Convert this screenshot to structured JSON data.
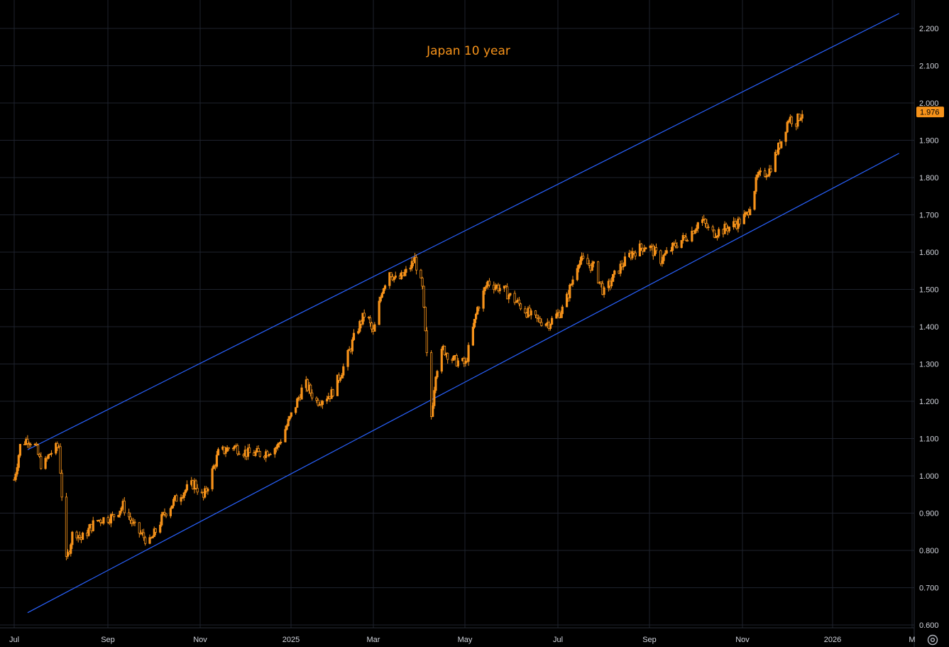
{
  "chart_data": {
    "type": "candlestick",
    "title": "Japan 10 year",
    "x_axis": {
      "labels": [
        "Jul",
        "Sep",
        "Nov",
        "2025",
        "Mar",
        "May",
        "Jul",
        "Sep",
        "Nov",
        "2026",
        "M"
      ]
    },
    "y_axis": {
      "ticks": [
        "2.200",
        "2.100",
        "2.000",
        "1.900",
        "1.800",
        "1.700",
        "1.600",
        "1.500",
        "1.400",
        "1.300",
        "1.200",
        "1.100",
        "1.000",
        "0.900",
        "0.800",
        "0.700",
        "0.600"
      ],
      "ylim": [
        0.6,
        2.2
      ]
    },
    "last_price": "1.976",
    "series": [
      {
        "type": "price",
        "points": [
          {
            "x": "2024-07-01",
            "y": 0.99
          },
          {
            "x": "2024-07-05",
            "y": 1.08
          },
          {
            "x": "2024-07-10",
            "y": 1.1
          },
          {
            "x": "2024-07-15",
            "y": 1.08
          },
          {
            "x": "2024-07-20",
            "y": 1.02
          },
          {
            "x": "2024-07-25",
            "y": 1.06
          },
          {
            "x": "2024-07-31",
            "y": 1.08
          },
          {
            "x": "2024-08-02",
            "y": 0.95
          },
          {
            "x": "2024-08-05",
            "y": 0.77
          },
          {
            "x": "2024-08-10",
            "y": 0.86
          },
          {
            "x": "2024-08-15",
            "y": 0.83
          },
          {
            "x": "2024-08-25",
            "y": 0.88
          },
          {
            "x": "2024-09-05",
            "y": 0.89
          },
          {
            "x": "2024-09-12",
            "y": 0.92
          },
          {
            "x": "2024-09-20",
            "y": 0.86
          },
          {
            "x": "2024-09-30",
            "y": 0.82
          },
          {
            "x": "2024-10-10",
            "y": 0.9
          },
          {
            "x": "2024-10-20",
            "y": 0.95
          },
          {
            "x": "2024-10-30",
            "y": 0.98
          },
          {
            "x": "2024-11-05",
            "y": 0.94
          },
          {
            "x": "2024-11-15",
            "y": 1.06
          },
          {
            "x": "2024-11-25",
            "y": 1.08
          },
          {
            "x": "2024-12-05",
            "y": 1.06
          },
          {
            "x": "2024-12-15",
            "y": 1.06
          },
          {
            "x": "2024-12-25",
            "y": 1.08
          },
          {
            "x": "2025-01-05",
            "y": 1.18
          },
          {
            "x": "2025-01-12",
            "y": 1.25
          },
          {
            "x": "2025-01-20",
            "y": 1.2
          },
          {
            "x": "2025-01-30",
            "y": 1.22
          },
          {
            "x": "2025-02-08",
            "y": 1.3
          },
          {
            "x": "2025-02-15",
            "y": 1.38
          },
          {
            "x": "2025-02-22",
            "y": 1.44
          },
          {
            "x": "2025-02-27",
            "y": 1.38
          },
          {
            "x": "2025-03-05",
            "y": 1.5
          },
          {
            "x": "2025-03-10",
            "y": 1.55
          },
          {
            "x": "2025-03-15",
            "y": 1.52
          },
          {
            "x": "2025-03-22",
            "y": 1.55
          },
          {
            "x": "2025-03-27",
            "y": 1.58
          },
          {
            "x": "2025-04-01",
            "y": 1.5
          },
          {
            "x": "2025-04-04",
            "y": 1.32
          },
          {
            "x": "2025-04-07",
            "y": 1.16
          },
          {
            "x": "2025-04-10",
            "y": 1.28
          },
          {
            "x": "2025-04-15",
            "y": 1.34
          },
          {
            "x": "2025-04-22",
            "y": 1.31
          },
          {
            "x": "2025-04-30",
            "y": 1.3
          },
          {
            "x": "2025-05-08",
            "y": 1.45
          },
          {
            "x": "2025-05-15",
            "y": 1.52
          },
          {
            "x": "2025-05-25",
            "y": 1.5
          },
          {
            "x": "2025-06-05",
            "y": 1.46
          },
          {
            "x": "2025-06-15",
            "y": 1.42
          },
          {
            "x": "2025-06-25",
            "y": 1.41
          },
          {
            "x": "2025-07-05",
            "y": 1.45
          },
          {
            "x": "2025-07-15",
            "y": 1.58
          },
          {
            "x": "2025-07-25",
            "y": 1.56
          },
          {
            "x": "2025-08-01",
            "y": 1.49
          },
          {
            "x": "2025-08-10",
            "y": 1.55
          },
          {
            "x": "2025-08-20",
            "y": 1.6
          },
          {
            "x": "2025-08-30",
            "y": 1.62
          },
          {
            "x": "2025-09-08",
            "y": 1.58
          },
          {
            "x": "2025-09-18",
            "y": 1.62
          },
          {
            "x": "2025-09-28",
            "y": 1.65
          },
          {
            "x": "2025-10-05",
            "y": 1.69
          },
          {
            "x": "2025-10-12",
            "y": 1.65
          },
          {
            "x": "2025-10-20",
            "y": 1.66
          },
          {
            "x": "2025-10-30",
            "y": 1.68
          },
          {
            "x": "2025-11-05",
            "y": 1.7
          },
          {
            "x": "2025-11-12",
            "y": 1.8
          },
          {
            "x": "2025-11-20",
            "y": 1.82
          },
          {
            "x": "2025-11-28",
            "y": 1.9
          },
          {
            "x": "2025-12-03",
            "y": 1.96
          },
          {
            "x": "2025-12-08",
            "y": 1.95
          },
          {
            "x": "2025-12-12",
            "y": 1.976
          }
        ]
      }
    ],
    "trendlines": [
      {
        "name": "upper-channel",
        "from": {
          "x": "2024-07-10",
          "y": 1.07
        },
        "to": {
          "x": "2026-02-15",
          "y": 2.24
        }
      },
      {
        "name": "lower-channel",
        "from": {
          "x": "2024-07-10",
          "y": 0.633
        },
        "to": {
          "x": "2026-02-15",
          "y": 1.865
        }
      }
    ],
    "grid": true,
    "colors": {
      "background": "#000000",
      "candle": "#f7931a",
      "grid": "#1e222d",
      "trendline": "#2962ff",
      "title": "#f7931a",
      "last_price_tag": "#f7931a"
    }
  },
  "toolbar": {
    "settings_icon": "gear-icon"
  }
}
